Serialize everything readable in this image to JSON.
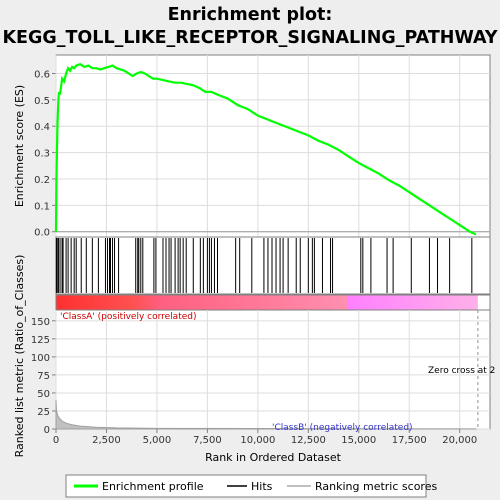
{
  "title_line1": "Enrichment plot:",
  "title_line2": "KEGG_TOLL_LIKE_RECEPTOR_SIGNALING_PATHWAY",
  "chart_data": {
    "type": "line",
    "x_label": "Rank in Ordered Dataset",
    "x_range": [
      0,
      21500
    ],
    "x_ticks": [
      "0",
      "2,500",
      "5,000",
      "7,500",
      "10,000",
      "12,500",
      "15,000",
      "17,500",
      "20,000"
    ],
    "x_tick_values": [
      0,
      2500,
      5000,
      7500,
      10000,
      12500,
      15000,
      17500,
      20000
    ],
    "es_panel": {
      "ylabel": "Enrichment score (ES)",
      "ylim": [
        -0.02,
        0.67
      ],
      "y_ticks": [
        "0.0",
        "0.1",
        "0.2",
        "0.3",
        "0.4",
        "0.5",
        "0.6"
      ],
      "y_tick_values": [
        0,
        0.1,
        0.2,
        0.3,
        0.4,
        0.5,
        0.6
      ],
      "series_color": "#00ff00",
      "x": [
        0,
        20,
        50,
        80,
        120,
        150,
        200,
        300,
        400,
        500,
        600,
        700,
        800,
        900,
        1000,
        1200,
        1400,
        1600,
        1800,
        2000,
        2200,
        2400,
        2600,
        2800,
        3000,
        3200,
        3400,
        3600,
        3800,
        4000,
        4200,
        4400,
        4600,
        4800,
        5000,
        5300,
        5600,
        5900,
        6200,
        6500,
        6800,
        7100,
        7400,
        7700,
        8000,
        8500,
        9000,
        9500,
        10000,
        10500,
        11000,
        11500,
        12000,
        12500,
        13000,
        13500,
        14000,
        14500,
        15000,
        15500,
        16000,
        16500,
        17000,
        17500,
        18000,
        18500,
        19000,
        19500,
        20000,
        20500,
        20800
      ],
      "y": [
        0.0,
        0.19,
        0.32,
        0.42,
        0.5,
        0.53,
        0.52,
        0.58,
        0.57,
        0.6,
        0.62,
        0.61,
        0.625,
        0.62,
        0.63,
        0.635,
        0.625,
        0.63,
        0.62,
        0.62,
        0.615,
        0.62,
        0.625,
        0.63,
        0.62,
        0.615,
        0.61,
        0.6,
        0.59,
        0.6,
        0.605,
        0.6,
        0.59,
        0.58,
        0.58,
        0.575,
        0.57,
        0.565,
        0.565,
        0.56,
        0.555,
        0.545,
        0.53,
        0.53,
        0.52,
        0.505,
        0.48,
        0.465,
        0.44,
        0.425,
        0.41,
        0.395,
        0.38,
        0.365,
        0.345,
        0.33,
        0.31,
        0.285,
        0.26,
        0.24,
        0.22,
        0.195,
        0.175,
        0.15,
        0.125,
        0.1,
        0.075,
        0.05,
        0.025,
        0.0,
        -0.01
      ]
    },
    "hits_panel": {
      "positions": [
        20,
        60,
        120,
        200,
        300,
        350,
        500,
        600,
        750,
        900,
        1000,
        1250,
        1500,
        1800,
        2100,
        2450,
        2550,
        2650,
        2700,
        2800,
        2900,
        3100,
        3950,
        4050,
        4100,
        4200,
        4300,
        4850,
        4950,
        5300,
        5450,
        5600,
        5700,
        5900,
        6050,
        6150,
        6300,
        6450,
        6800,
        7150,
        7300,
        7500,
        7600,
        7700,
        7850,
        8000,
        8900,
        9100,
        9700,
        10300,
        10500,
        10700,
        10900,
        11100,
        11250,
        11500,
        11900,
        12100,
        12500,
        12700,
        12800,
        13200,
        13600,
        13700,
        15100,
        15200,
        15600,
        16400,
        16700,
        17600,
        18500,
        18900,
        19500,
        20600
      ]
    },
    "rank_bar": {
      "split_fraction": 0.69,
      "positive_color": "#ff0000",
      "negative_color": "#ff80ff"
    },
    "metric_panel": {
      "ylabel": "Ranked list metric (Ratio_of_Classes)",
      "ylim": [
        0,
        165
      ],
      "y_ticks": [
        "0",
        "25",
        "50",
        "75",
        "100",
        "125",
        "150"
      ],
      "y_tick_values": [
        0,
        25,
        50,
        75,
        100,
        125,
        150
      ],
      "classA_label": "'ClassA' (positively correlated)",
      "classB_label": "'ClassB' (negatively correlated)",
      "zero_cross_label": "Zero cross at 2",
      "zero_cross_x": 20900,
      "x": [
        0,
        20,
        50,
        100,
        200,
        300,
        500,
        800,
        1200,
        2000,
        3000,
        5000,
        20800
      ],
      "y": [
        40,
        28,
        22,
        18,
        14,
        11,
        8,
        6,
        4,
        2.5,
        1.5,
        0.8,
        0.2
      ]
    },
    "legend": [
      "Enrichment profile",
      "Hits",
      "Ranking metric scores"
    ]
  }
}
